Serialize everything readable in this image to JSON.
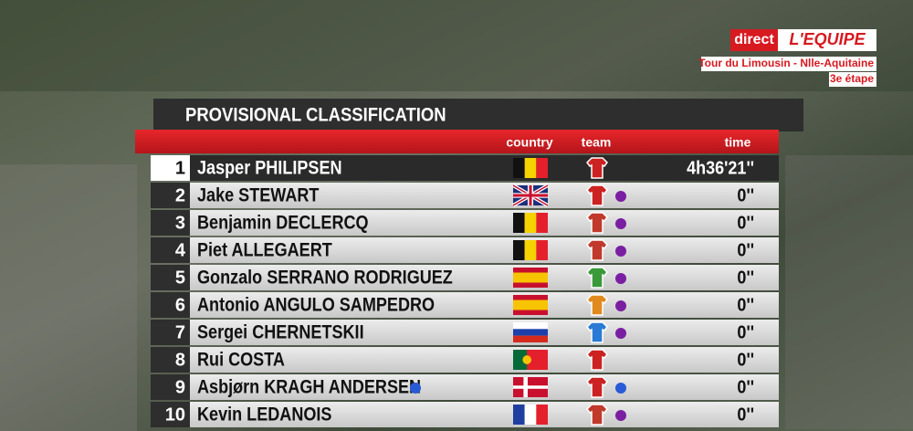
{
  "header": {
    "live": "direct",
    "channel": "L'EQUIPE",
    "race": "Tour du Limousin - Nlle-Aquitaine",
    "stage": "3e étape"
  },
  "table": {
    "title": "PROVISIONAL CLASSIFICATION",
    "columns": [
      "country",
      "team",
      "time"
    ],
    "rows": [
      [
        "1",
        "Jasper PHILIPSEN",
        "4h36'21''"
      ],
      [
        "2",
        "Jake STEWART",
        "0''"
      ],
      [
        "3",
        "Benjamin DECLERCQ",
        "0''"
      ],
      [
        "4",
        "Piet ALLEGAERT",
        "0''"
      ],
      [
        "5",
        "Gonzalo SERRANO RODRIGUEZ",
        "0''"
      ],
      [
        "6",
        "Antonio ANGULO SAMPEDRO",
        "0''"
      ],
      [
        "7",
        "Sergei CHERNETSKII",
        "0''"
      ],
      [
        "8",
        "Rui COSTA",
        "0''"
      ],
      [
        "9",
        "Asbjørn KRAGH ANDERSEN",
        "0''"
      ],
      [
        "10",
        "Kevin LEDANOIS",
        "0''"
      ]
    ]
  }
}
